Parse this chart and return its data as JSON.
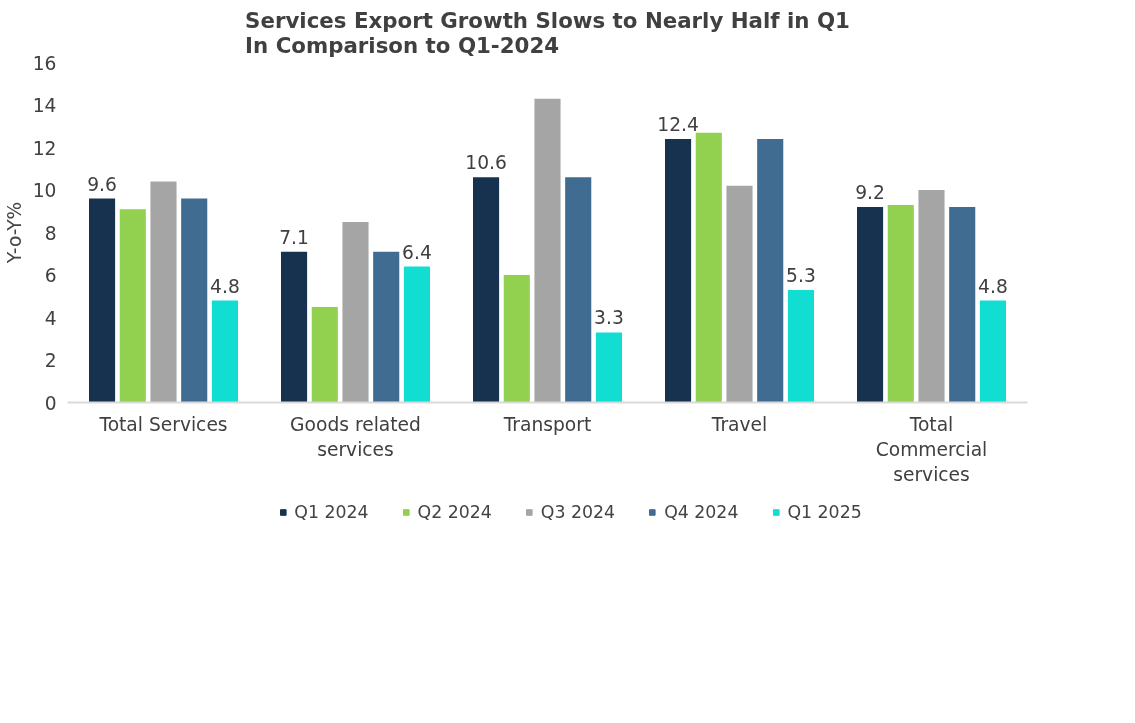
{
  "chart_data": {
    "type": "bar",
    "title": "Services Export Growth Slows to Nearly Half in Q1 In Comparison to Q1-2024",
    "ylabel": "Y-o-Y%",
    "categories": [
      "Total Services",
      "Goods related services",
      "Transport",
      "Travel",
      "Total Commercial services"
    ],
    "series": [
      {
        "name": "Q1 2024",
        "color": "#17324f",
        "values": [
          9.6,
          7.1,
          10.6,
          12.4,
          9.2
        ],
        "value_labels": [
          "9.6",
          "7.1",
          "10.6",
          "12.4",
          "9.2"
        ]
      },
      {
        "name": "Q2 2024",
        "color": "#92d050",
        "values": [
          9.1,
          4.5,
          6.0,
          12.7,
          9.3
        ]
      },
      {
        "name": "Q3 2024",
        "color": "#a5a5a5",
        "values": [
          10.4,
          8.5,
          14.3,
          10.2,
          10.0
        ]
      },
      {
        "name": "Q4 2024",
        "color": "#416c92",
        "values": [
          9.6,
          7.1,
          10.6,
          12.4,
          9.2
        ]
      },
      {
        "name": "Q1 2025",
        "color": "#12ddd2",
        "values": [
          4.8,
          6.4,
          3.3,
          5.3,
          4.8
        ],
        "value_labels": [
          "4.8",
          "6.4",
          "3.3",
          "5.3",
          "4.8"
        ]
      }
    ],
    "ylim": [
      0,
      16
    ],
    "yticks": [
      0,
      2,
      4,
      6,
      8,
      10,
      12,
      14,
      16
    ],
    "grid": false,
    "legend": "bottom"
  }
}
